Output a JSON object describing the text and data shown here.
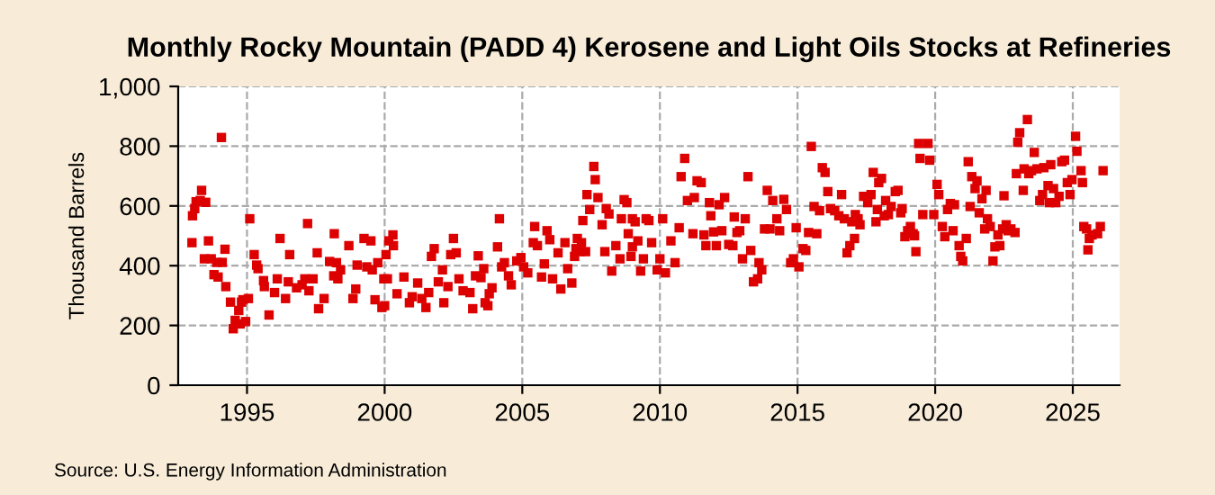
{
  "chart_data": {
    "type": "scatter",
    "title": "Monthly Rocky Mountain (PADD 4) Kerosene and Light Oils Stocks at Refineries",
    "ylabel": "Thousand Barrels",
    "annotations": [
      "Source: U.S. Energy Information Administration"
    ],
    "xlim": [
      1992.5,
      2026.7
    ],
    "xticks": [
      1995,
      2000,
      2005,
      2010,
      2015,
      2020,
      2025
    ],
    "ylim": [
      0,
      1000
    ],
    "yticks": [
      0,
      {
        "value": 200,
        "label": "200"
      },
      {
        "value": 400,
        "label": "400"
      },
      {
        "value": 600,
        "label": "600"
      },
      {
        "value": 800,
        "label": "800"
      },
      {
        "value": 1000,
        "label": "1,000"
      }
    ],
    "grid": true,
    "marker": "square",
    "legend": false,
    "series": [
      {
        "color": "#dd0000",
        "x": [
          1993.0,
          1993.02,
          1993.1,
          1993.15,
          1993.35,
          1993.3,
          1993.5,
          1993.6,
          1993.45,
          1993.7,
          1993.8,
          1993.9,
          1993.95,
          1994.07,
          1994.1,
          1994.2,
          1994.23,
          1994.4,
          1994.5,
          1994.57,
          1994.7,
          1994.8,
          1994.75,
          1994.85,
          1994.95,
          1995.05,
          1995.1,
          1995.26,
          1995.35,
          1995.4,
          1995.6,
          1995.63,
          1995.8,
          1996.0,
          1996.2,
          1996.1,
          1996.4,
          1996.55,
          1996.5,
          1996.8,
          1997.0,
          1997.1,
          1997.2,
          1997.25,
          1997.4,
          1997.55,
          1997.6,
          1997.8,
          1998.0,
          1998.15,
          1998.17,
          1998.25,
          1998.3,
          1998.4,
          1998.7,
          1998.85,
          1998.95,
          1999.0,
          1999.25,
          1999.35,
          1999.5,
          1999.55,
          1999.65,
          1999.75,
          1999.9,
          1999.97,
          2000.05,
          2000.15,
          2000.3,
          2000.0,
          2000.1,
          2000.32,
          2000.45,
          2000.7,
          2000.9,
          2001.0,
          2001.2,
          2001.35,
          2001.5,
          2001.6,
          2001.7,
          2001.8,
          2001.95,
          2002.1,
          2002.15,
          2002.3,
          2002.4,
          2002.5,
          2002.6,
          2002.7,
          2002.85,
          2003.1,
          2003.2,
          2003.3,
          2003.4,
          2003.5,
          2003.6,
          2003.65,
          2003.75,
          2003.8,
          2003.9,
          2004.1,
          2004.17,
          2004.25,
          2004.35,
          2004.5,
          2004.6,
          2004.8,
          2004.95,
          2005.05,
          2005.2,
          2005.4,
          2005.45,
          2005.55,
          2005.7,
          2005.8,
          2005.9,
          2006.0,
          2006.1,
          2006.3,
          2006.4,
          2006.55,
          2006.65,
          2006.8,
          2006.9,
          2006.95,
          2007.0,
          2007.1,
          2007.15,
          2007.2,
          2007.3,
          2007.35,
          2007.45,
          2007.6,
          2007.65,
          2007.75,
          2007.9,
          2008.0,
          2008.05,
          2008.15,
          2008.25,
          2008.4,
          2008.55,
          2008.6,
          2008.7,
          2008.8,
          2008.85,
          2008.95,
          2009.0,
          2009.0,
          2009.1,
          2009.2,
          2009.3,
          2009.4,
          2009.5,
          2009.6,
          2009.7,
          2009.9,
          2010.0,
          2010.1,
          2010.2,
          2010.4,
          2010.55,
          2010.7,
          2010.77,
          2010.9,
          2011.0,
          2011.2,
          2011.25,
          2011.35,
          2011.5,
          2011.6,
          2011.67,
          2011.8,
          2011.85,
          2011.95,
          2012.05,
          2012.15,
          2012.25,
          2012.35,
          2012.5,
          2012.65,
          2012.7,
          2012.8,
          2012.9,
          2013.0,
          2013.1,
          2013.2,
          2013.3,
          2013.4,
          2013.55,
          2013.6,
          2013.7,
          2013.8,
          2013.9,
          2014.0,
          2014.1,
          2014.25,
          2014.35,
          2014.5,
          2014.6,
          2014.75,
          2014.85,
          2014.95,
          2015.05,
          2015.2,
          2015.3,
          2015.4,
          2015.5,
          2015.6,
          2015.7,
          2015.8,
          2015.9,
          2016.0,
          2016.1,
          2016.2,
          2016.35,
          2016.5,
          2016.6,
          2016.7,
          2016.8,
          2016.9,
          2016.97,
          2017.07,
          2017.1,
          2017.2,
          2017.27,
          2017.4,
          2017.55,
          2017.67,
          2017.75,
          2017.85,
          2017.9,
          2017.95,
          2018.05,
          2018.15,
          2018.2,
          2018.3,
          2018.4,
          2018.55,
          2018.65,
          2018.75,
          2018.8,
          2018.9,
          2019.0,
          2019.1,
          2019.2,
          2019.25,
          2019.3,
          2019.4,
          2019.45,
          2019.55,
          2019.74,
          2019.8,
          2019.95,
          2020.07,
          2020.13,
          2020.26,
          2020.35,
          2020.45,
          2020.55,
          2020.65,
          2020.7,
          2020.87,
          2020.93,
          2021.0,
          2021.13,
          2021.2,
          2021.27,
          2021.33,
          2021.45,
          2021.52,
          2021.6,
          2021.7,
          2021.8,
          2021.85,
          2021.9,
          2022.0,
          2022.1,
          2022.17,
          2022.28,
          2022.35,
          2022.45,
          2022.5,
          2022.58,
          2022.65,
          2022.75,
          2022.9,
          2022.95,
          2023.0,
          2023.07,
          2023.2,
          2023.23,
          2023.35,
          2023.4,
          2023.5,
          2023.6,
          2023.7,
          2023.8,
          2023.9,
          2023.95,
          2024.1,
          2024.15,
          2024.2,
          2024.3,
          2024.38,
          2024.5,
          2024.6,
          2024.7,
          2024.8,
          2024.9,
          2024.97,
          2025.1,
          2025.15,
          2025.3,
          2025.35,
          2025.4,
          2025.5,
          2025.55,
          2025.6,
          2025.7,
          2025.9,
          2026.0,
          2026.1
        ],
        "values": [
          477,
          567,
          591,
          614,
          652,
          618,
          612,
          483,
          423,
          423,
          370,
          411,
          362,
          829,
          411,
          455,
          330,
          278,
          189,
          217,
          250,
          278,
          205,
          286,
          213,
          290,
          557,
          437,
          402,
          390,
          350,
          330,
          235,
          310,
          491,
          356,
          290,
          437,
          346,
          326,
          336,
          356,
          541,
          316,
          356,
          443,
          256,
          290,
          414,
          366,
          507,
          410,
          356,
          386,
          467,
          290,
          322,
          402,
          491,
          396,
          483,
          386,
          286,
          410,
          260,
          356,
          437,
          483,
          503,
          266,
          356,
          467,
          306,
          362,
          276,
          296,
          342,
          290,
          260,
          310,
          431,
          457,
          346,
          386,
          276,
          330,
          437,
          491,
          443,
          356,
          316,
          310,
          256,
          366,
          433,
          360,
          390,
          276,
          266,
          306,
          326,
          463,
          557,
          396,
          410,
          366,
          336,
          416,
          427,
          396,
          376,
          477,
          531,
          467,
          362,
          406,
          517,
          487,
          356,
          443,
          322,
          477,
          390,
          342,
          431,
          457,
          491,
          447,
          477,
          551,
          447,
          638,
          588,
          732,
          688,
          628,
          537,
          447,
          591,
          573,
          382,
          467,
          423,
          557,
          621,
          611,
          507,
          431,
          463,
          557,
          547,
          483,
          382,
          423,
          557,
          551,
          477,
          386,
          423,
          557,
          376,
          483,
          410,
          527,
          698,
          759,
          618,
          507,
          628,
          684,
          678,
          503,
          467,
          611,
          567,
          513,
          467,
          604,
          517,
          628,
          471,
          467,
          563,
          511,
          517,
          423,
          557,
          698,
          451,
          346,
          356,
          410,
          386,
          523,
          652,
          523,
          618,
          557,
          517,
          622,
          588,
          410,
          423,
          527,
          396,
          457,
          451,
          511,
          799,
          598,
          507,
          584,
          728,
          712,
          648,
          591,
          584,
          567,
          638,
          557,
          443,
          467,
          547,
          491,
          571,
          557,
          537,
          632,
          611,
          638,
          712,
          547,
          588,
          678,
          692,
          567,
          618,
          571,
          598,
          648,
          652,
          577,
          591,
          497,
          517,
          531,
          507,
          500,
          447,
          809,
          759,
          571,
          809,
          753,
          571,
          672,
          638,
          531,
          497,
          588,
          608,
          517,
          604,
          467,
          431,
          416,
          491,
          748,
          598,
          698,
          658,
          684,
          577,
          624,
          523,
          652,
          557,
          531,
          416,
          463,
          503,
          467,
          523,
          634,
          537,
          517,
          523,
          511,
          708,
          813,
          845,
          652,
          724,
          889,
          708,
          718,
          779,
          724,
          618,
          638,
          728,
          668,
          611,
          738,
          658,
          611,
          632,
          748,
          753,
          678,
          638,
          688,
          833,
          783,
          718,
          678,
          531,
          523,
          453,
          491,
          503,
          507,
          531,
          718
        ]
      }
    ]
  }
}
